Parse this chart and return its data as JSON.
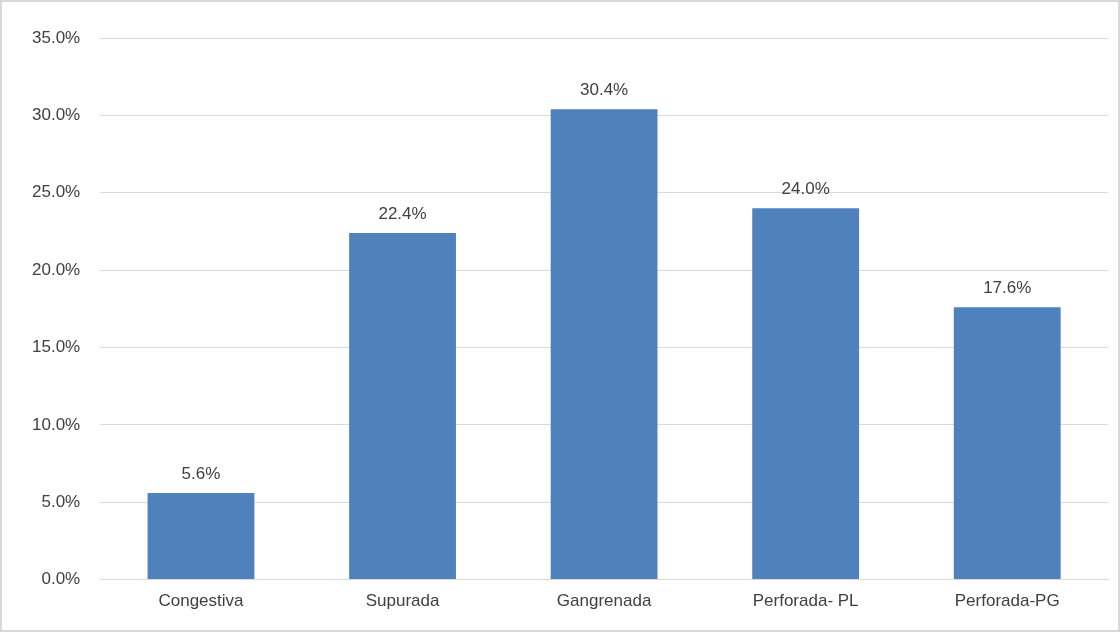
{
  "chart_data": {
    "type": "bar",
    "categories": [
      "Congestiva",
      "Supurada",
      "Gangrenada",
      "Perforada- PL",
      "Perforada-PG"
    ],
    "values": [
      5.6,
      22.4,
      30.4,
      24.0,
      17.6
    ],
    "value_labels": [
      "5.6%",
      "22.4%",
      "30.4%",
      "24.0%",
      "17.6%"
    ],
    "color": "#4f81bd",
    "ylim": [
      0,
      35
    ],
    "yticks": [
      {
        "value": 0,
        "label": "0.0%"
      },
      {
        "value": 5,
        "label": "5.0%"
      },
      {
        "value": 10,
        "label": "10.0%"
      },
      {
        "value": 15,
        "label": "15.0%"
      },
      {
        "value": 20,
        "label": "20.0%"
      },
      {
        "value": 25,
        "label": "25.0%"
      },
      {
        "value": 30,
        "label": "30.0%"
      },
      {
        "value": 35,
        "label": "35.0%"
      }
    ],
    "grid": "y",
    "legend": false
  }
}
